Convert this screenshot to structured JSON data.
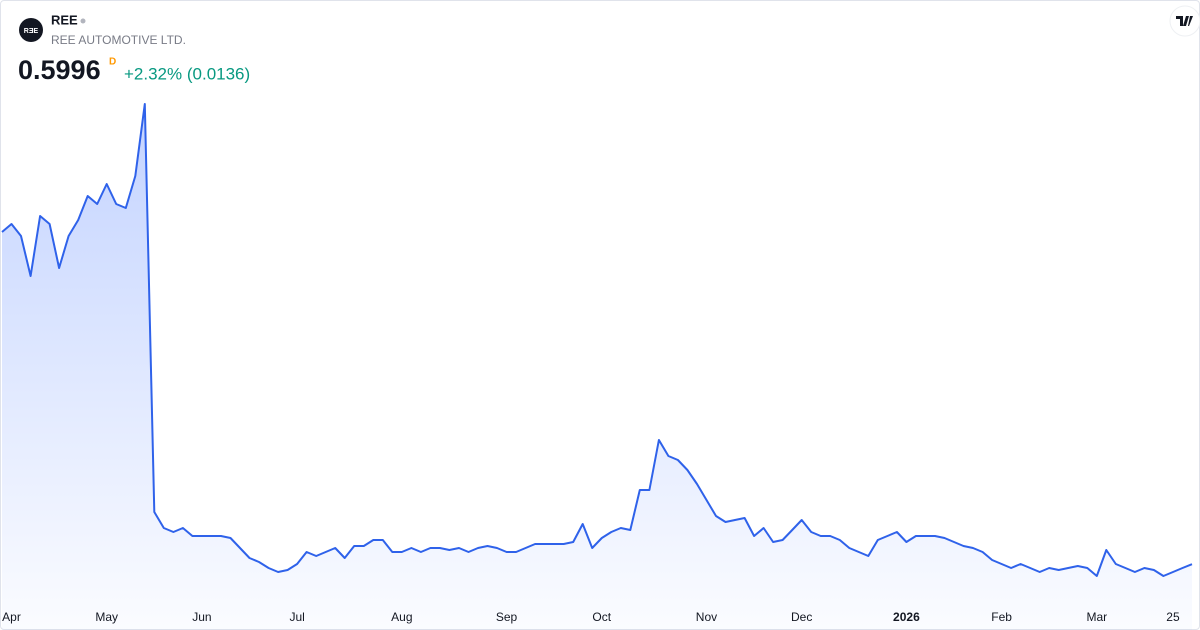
{
  "header": {
    "logo": "RƎE",
    "symbol": "REE",
    "name": "REE AUTOMOTIVE LTD.",
    "price": "0.5996",
    "period": "D",
    "change": "+2.32% (0.0136)"
  },
  "chart_data": {
    "type": "area",
    "color": "#2f62ea",
    "ylim": [
      0.51,
      1.86
    ],
    "categories": [
      null,
      "Apr",
      null,
      null,
      null,
      null,
      null,
      null,
      null,
      null,
      null,
      "May",
      null,
      null,
      null,
      null,
      null,
      null,
      null,
      null,
      null,
      "Jun",
      null,
      null,
      null,
      null,
      null,
      null,
      null,
      null,
      null,
      "Jul",
      null,
      null,
      null,
      null,
      null,
      null,
      null,
      null,
      null,
      null,
      "Aug",
      null,
      null,
      null,
      null,
      null,
      null,
      null,
      null,
      null,
      null,
      "Sep",
      null,
      null,
      null,
      null,
      null,
      null,
      null,
      null,
      null,
      "Oct",
      null,
      null,
      null,
      null,
      null,
      null,
      null,
      null,
      null,
      null,
      "Nov",
      null,
      null,
      null,
      null,
      null,
      null,
      null,
      null,
      null,
      "Dec",
      null,
      null,
      null,
      null,
      null,
      null,
      null,
      null,
      null,
      null,
      "2026",
      null,
      null,
      null,
      null,
      null,
      null,
      null,
      null,
      null,
      "Feb",
      null,
      null,
      null,
      null,
      null,
      null,
      null,
      null,
      null,
      "Mar",
      null,
      null,
      null,
      null,
      null,
      null,
      null,
      "25",
      null,
      null
    ],
    "values": [
      1.43,
      1.45,
      1.42,
      1.32,
      1.47,
      1.45,
      1.34,
      1.42,
      1.46,
      1.52,
      1.5,
      1.55,
      1.5,
      1.49,
      1.57,
      1.75,
      0.73,
      0.69,
      0.68,
      0.69,
      0.67,
      0.67,
      0.67,
      0.67,
      0.665,
      0.64,
      0.615,
      0.605,
      0.59,
      0.58,
      0.585,
      0.6,
      0.63,
      0.62,
      0.63,
      0.64,
      0.615,
      0.645,
      0.645,
      0.66,
      0.66,
      0.63,
      0.63,
      0.64,
      0.63,
      0.64,
      0.64,
      0.635,
      0.64,
      0.63,
      0.64,
      0.645,
      0.64,
      0.63,
      0.63,
      0.64,
      0.65,
      0.65,
      0.65,
      0.65,
      0.655,
      0.7,
      0.64,
      0.665,
      0.68,
      0.69,
      0.685,
      0.785,
      0.785,
      0.91,
      0.87,
      0.86,
      0.835,
      0.8,
      0.76,
      0.72,
      0.705,
      0.71,
      0.715,
      0.67,
      0.69,
      0.655,
      0.66,
      0.685,
      0.71,
      0.68,
      0.67,
      0.67,
      0.66,
      0.64,
      0.63,
      0.62,
      0.66,
      0.67,
      0.68,
      0.655,
      0.67,
      0.67,
      0.67,
      0.665,
      0.655,
      0.645,
      0.64,
      0.63,
      0.61,
      0.6,
      0.59,
      0.6,
      0.59,
      0.58,
      0.59,
      0.585,
      0.59,
      0.595,
      0.59,
      0.57,
      0.635,
      0.6,
      0.59,
      0.58,
      0.59,
      0.585,
      0.57,
      0.58,
      0.59,
      0.5996
    ]
  }
}
